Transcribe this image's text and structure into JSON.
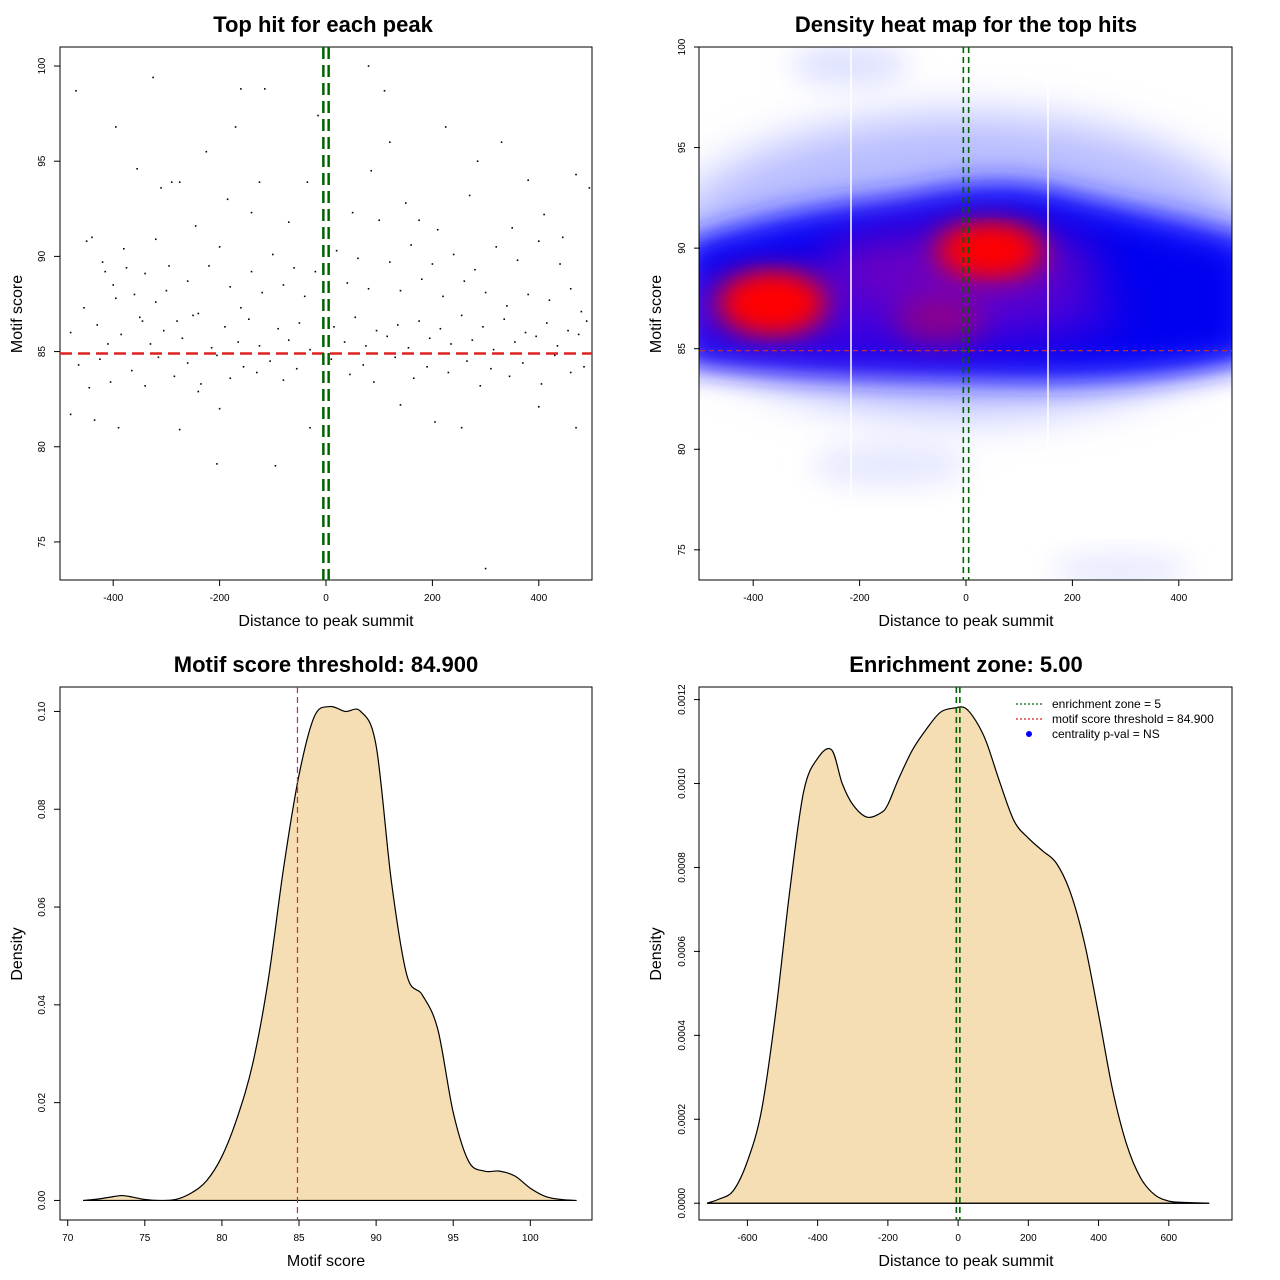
{
  "panels": {
    "scatter": {
      "title": "Top hit for each peak",
      "xlabel": "Distance to peak summit",
      "ylabel": "Motif score"
    },
    "heatmap": {
      "title": "Density heat map for the top hits",
      "xlabel": "Distance to peak summit",
      "ylabel": "Motif score"
    },
    "score_density": {
      "title": "Motif score threshold: 84.900",
      "xlabel": "Motif score",
      "ylabel": "Density"
    },
    "distance_density": {
      "title": "Enrichment zone: 5.00",
      "xlabel": "Distance to peak summit",
      "ylabel": "Density"
    }
  },
  "legend": {
    "zone": "enrichment zone = 5",
    "threshold": "motif score threshold = 84.900",
    "pval": "centrality p-val = NS"
  },
  "colors": {
    "threshold": "#dd2222",
    "zone": "#006400",
    "fill": "#f5deb3",
    "heat_low": "#0000ff",
    "heat_high": "#ff0000"
  },
  "chart_data": [
    {
      "type": "scatter",
      "title": "Top hit for each peak",
      "xlabel": "Distance to peak summit",
      "ylabel": "Motif score",
      "xlim": [
        -500,
        500
      ],
      "ylim": [
        73,
        101
      ],
      "xticks": [
        "-400",
        "-200",
        "0",
        "200",
        "400"
      ],
      "yticks": [
        "75",
        "80",
        "85",
        "90",
        "95",
        "100"
      ],
      "hline": 84.9,
      "vlines": [
        -5,
        5
      ],
      "points": [
        [
          -470,
          98.7
        ],
        [
          -325,
          99.4
        ],
        [
          -115,
          98.8
        ],
        [
          -160,
          98.8
        ],
        [
          -170,
          96.8
        ],
        [
          -395,
          96.8
        ],
        [
          -355,
          94.6
        ],
        [
          -310,
          93.6
        ],
        [
          -290,
          93.9
        ],
        [
          -275,
          93.9
        ],
        [
          -225,
          95.5
        ],
        [
          -15,
          97.4
        ],
        [
          80,
          100
        ],
        [
          110,
          98.7
        ],
        [
          120,
          96
        ],
        [
          225,
          96.8
        ],
        [
          285,
          95
        ],
        [
          330,
          96
        ],
        [
          380,
          94
        ],
        [
          470,
          94.3
        ],
        [
          495,
          93.6
        ],
        [
          -440,
          91
        ],
        [
          -420,
          89.7
        ],
        [
          -400,
          88.5
        ],
        [
          -380,
          90.4
        ],
        [
          -360,
          88
        ],
        [
          -340,
          89.1
        ],
        [
          -320,
          87.6
        ],
        [
          -300,
          88.2
        ],
        [
          -280,
          86.6
        ],
        [
          -260,
          88.7
        ],
        [
          -240,
          87
        ],
        [
          -220,
          89.5
        ],
        [
          -200,
          90.5
        ],
        [
          -180,
          88.4
        ],
        [
          -160,
          87.3
        ],
        [
          -140,
          89.2
        ],
        [
          -120,
          88.1
        ],
        [
          -100,
          90.1
        ],
        [
          -80,
          88.5
        ],
        [
          -60,
          89.4
        ],
        [
          -40,
          87.9
        ],
        [
          -20,
          89.2
        ],
        [
          20,
          90.3
        ],
        [
          40,
          88.6
        ],
        [
          60,
          89.9
        ],
        [
          80,
          88.3
        ],
        [
          100,
          91.9
        ],
        [
          120,
          89.7
        ],
        [
          140,
          88.2
        ],
        [
          160,
          90.6
        ],
        [
          180,
          88.8
        ],
        [
          200,
          89.6
        ],
        [
          220,
          87.9
        ],
        [
          240,
          90.1
        ],
        [
          260,
          88.7
        ],
        [
          280,
          89.3
        ],
        [
          300,
          88.1
        ],
        [
          320,
          90.5
        ],
        [
          340,
          87.4
        ],
        [
          360,
          89.8
        ],
        [
          380,
          88
        ],
        [
          400,
          90.8
        ],
        [
          420,
          87.7
        ],
        [
          440,
          89.6
        ],
        [
          460,
          88.3
        ],
        [
          480,
          87.1
        ],
        [
          -480,
          86
        ],
        [
          -455,
          87.3
        ],
        [
          -430,
          86.4
        ],
        [
          -410,
          85.4
        ],
        [
          -385,
          85.9
        ],
        [
          -350,
          86.8
        ],
        [
          -330,
          85.4
        ],
        [
          -305,
          86.1
        ],
        [
          -270,
          85.7
        ],
        [
          -250,
          86.9
        ],
        [
          -215,
          85.2
        ],
        [
          -190,
          86.3
        ],
        [
          -165,
          85.5
        ],
        [
          -145,
          86.7
        ],
        [
          -125,
          85.3
        ],
        [
          -90,
          86.2
        ],
        [
          -70,
          85.6
        ],
        [
          -50,
          86.5
        ],
        [
          -30,
          85.1
        ],
        [
          15,
          86.3
        ],
        [
          35,
          85.5
        ],
        [
          55,
          86.8
        ],
        [
          75,
          85.3
        ],
        [
          95,
          86.1
        ],
        [
          115,
          85.8
        ],
        [
          135,
          86.4
        ],
        [
          155,
          85.2
        ],
        [
          175,
          86.6
        ],
        [
          195,
          85.7
        ],
        [
          215,
          86.2
        ],
        [
          235,
          85.4
        ],
        [
          255,
          86.9
        ],
        [
          275,
          85.6
        ],
        [
          295,
          86.3
        ],
        [
          315,
          85.1
        ],
        [
          335,
          86.7
        ],
        [
          355,
          85.5
        ],
        [
          375,
          86
        ],
        [
          395,
          85.8
        ],
        [
          415,
          86.5
        ],
        [
          435,
          85.3
        ],
        [
          455,
          86.1
        ],
        [
          475,
          85.9
        ],
        [
          490,
          86.6
        ],
        [
          -465,
          84.3
        ],
        [
          -445,
          83.1
        ],
        [
          -425,
          84.6
        ],
        [
          -405,
          83.4
        ],
        [
          -365,
          84
        ],
        [
          -340,
          83.2
        ],
        [
          -315,
          84.7
        ],
        [
          -285,
          83.7
        ],
        [
          -260,
          84.4
        ],
        [
          -235,
          83.3
        ],
        [
          -205,
          84.8
        ],
        [
          -180,
          83.6
        ],
        [
          -155,
          84.2
        ],
        [
          -130,
          83.9
        ],
        [
          -105,
          84.5
        ],
        [
          -80,
          83.5
        ],
        [
          -55,
          84.1
        ],
        [
          10,
          84.6
        ],
        [
          45,
          83.8
        ],
        [
          70,
          84.3
        ],
        [
          90,
          83.4
        ],
        [
          130,
          84.7
        ],
        [
          165,
          83.6
        ],
        [
          190,
          84.2
        ],
        [
          230,
          83.9
        ],
        [
          265,
          84.5
        ],
        [
          290,
          83.2
        ],
        [
          310,
          84.1
        ],
        [
          345,
          83.7
        ],
        [
          370,
          84.4
        ],
        [
          405,
          83.3
        ],
        [
          430,
          84.8
        ],
        [
          460,
          83.9
        ],
        [
          485,
          84.2
        ],
        [
          -480,
          81.7
        ],
        [
          -435,
          81.4
        ],
        [
          -390,
          81
        ],
        [
          -240,
          82.9
        ],
        [
          -200,
          82
        ],
        [
          -30,
          81
        ],
        [
          140,
          82.2
        ],
        [
          205,
          81.3
        ],
        [
          255,
          81
        ],
        [
          400,
          82.1
        ],
        [
          470,
          81
        ],
        [
          -275,
          80.9
        ],
        [
          -205,
          79.1
        ],
        [
          -95,
          79
        ],
        [
          300,
          73.6
        ],
        [
          -415,
          89.2
        ],
        [
          -395,
          87.8
        ],
        [
          -375,
          89.4
        ],
        [
          -345,
          86.6
        ],
        [
          -295,
          89.5
        ],
        [
          -245,
          91.6
        ],
        [
          -185,
          93
        ],
        [
          -125,
          93.9
        ],
        [
          -70,
          91.8
        ],
        [
          -35,
          93.9
        ],
        [
          50,
          92.3
        ],
        [
          85,
          94.5
        ],
        [
          150,
          92.8
        ],
        [
          210,
          91.4
        ],
        [
          270,
          93.2
        ],
        [
          350,
          91.5
        ],
        [
          410,
          92.2
        ],
        [
          445,
          91
        ],
        [
          -450,
          90.8
        ],
        [
          -320,
          90.9
        ],
        [
          -140,
          92.3
        ],
        [
          175,
          91.9
        ]
      ]
    },
    {
      "type": "heatmap",
      "title": "Density heat map for the top hits",
      "xlabel": "Distance to peak summit",
      "ylabel": "Motif score",
      "xlim": [
        -500,
        500
      ],
      "ylim": [
        73.5,
        100
      ],
      "xticks": [
        "-400",
        "-200",
        "0",
        "200",
        "400"
      ],
      "yticks": [
        "75",
        "80",
        "85",
        "90",
        "95",
        "100"
      ],
      "hline": 84.9,
      "vlines": [
        -5,
        5
      ],
      "hotspots": [
        {
          "x": -365,
          "y": 87.1,
          "intensity": 1.0
        },
        {
          "x": 45,
          "y": 89.8,
          "intensity": 0.95
        },
        {
          "x": -20,
          "y": 85.5,
          "intensity": 0.55
        },
        {
          "x": 350,
          "y": 87.0,
          "intensity": 0.5
        }
      ]
    },
    {
      "type": "area",
      "title": "Motif score threshold: 84.900",
      "xlabel": "Motif score",
      "ylabel": "Density",
      "xlim": [
        69.5,
        104
      ],
      "ylim": [
        -0.004,
        0.105
      ],
      "xticks": [
        "70",
        "75",
        "80",
        "85",
        "90",
        "95",
        "100"
      ],
      "yticks": [
        "0.00",
        "0.02",
        "0.04",
        "0.06",
        "0.08",
        "0.10"
      ],
      "vline": 84.9,
      "x": [
        71,
        72,
        73,
        73.5,
        74,
        75,
        76,
        77,
        78,
        79,
        80,
        81,
        82,
        83,
        84,
        85,
        86,
        87,
        88,
        89,
        90,
        91,
        92,
        93,
        94,
        95,
        96,
        97,
        98,
        99,
        100,
        101,
        102,
        103
      ],
      "y": [
        0,
        0.0003,
        0.0008,
        0.001,
        0.0008,
        0.0002,
        0,
        0.0002,
        0.0015,
        0.004,
        0.009,
        0.017,
        0.028,
        0.045,
        0.068,
        0.087,
        0.099,
        0.101,
        0.1,
        0.1,
        0.093,
        0.065,
        0.046,
        0.042,
        0.035,
        0.018,
        0.008,
        0.006,
        0.006,
        0.005,
        0.0025,
        0.0008,
        0.0002,
        0
      ]
    },
    {
      "type": "area",
      "title": "Enrichment zone: 5.00",
      "xlabel": "Distance to peak summit",
      "ylabel": "Density",
      "xlim": [
        -735,
        780
      ],
      "ylim": [
        -4e-05,
        0.00123
      ],
      "xticks": [
        "-600",
        "-400",
        "-200",
        "0",
        "200",
        "400",
        "600"
      ],
      "yticks": [
        "0.0000",
        "0.0002",
        "0.0004",
        "0.0006",
        "0.0008",
        "0.0010",
        "0.0012"
      ],
      "vlines": [
        -5,
        5
      ],
      "x": [
        -715,
        -680,
        -640,
        -600,
        -560,
        -520,
        -480,
        -440,
        -400,
        -360,
        -330,
        -300,
        -260,
        -220,
        -200,
        -170,
        -130,
        -90,
        -50,
        -10,
        20,
        50,
        80,
        120,
        160,
        200,
        240,
        280,
        320,
        360,
        400,
        440,
        480,
        520,
        560,
        600,
        640,
        680,
        715
      ],
      "y": [
        0,
        1e-05,
        3e-05,
        0.0001,
        0.00022,
        0.00045,
        0.00074,
        0.00098,
        0.00106,
        0.00108,
        0.001,
        0.00095,
        0.00092,
        0.00093,
        0.00095,
        0.00101,
        0.00108,
        0.00113,
        0.00117,
        0.00118,
        0.00118,
        0.00115,
        0.0011,
        0.001,
        0.00091,
        0.00087,
        0.00084,
        0.00081,
        0.00074,
        0.00062,
        0.00045,
        0.00027,
        0.00014,
        6e-05,
        2e-05,
        5e-06,
        2e-06,
        1e-06,
        0
      ]
    }
  ]
}
